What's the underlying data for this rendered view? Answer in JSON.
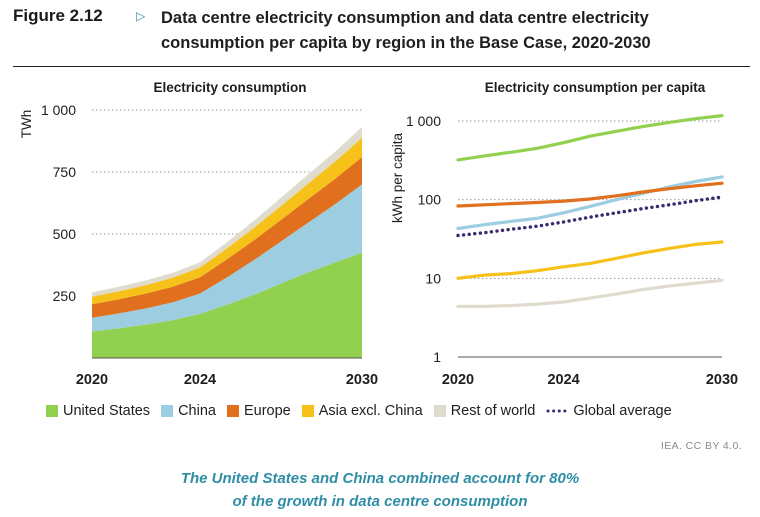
{
  "figure": {
    "label": "Figure 2.12",
    "title": "Data centre electricity consumption and data centre electricity consumption per capita by region in the Base Case, 2020-2030",
    "source": "IEA. CC BY 4.0.",
    "caption_line1": "The United States and China combined account for 80%",
    "caption_line2": "of the growth in data centre consumption"
  },
  "colors": {
    "united_states": "#92d050",
    "china": "#9ccde0",
    "europe": "#e0701d",
    "asia_excl_china": "#f6c21a",
    "rest_of_world": "#dfdccd",
    "global_average": "#3d2a6e"
  },
  "legend": [
    {
      "label": "United States",
      "color": "#92d050",
      "kind": "area"
    },
    {
      "label": "China",
      "color": "#9ccde0",
      "kind": "area"
    },
    {
      "label": "Europe",
      "color": "#e0701d",
      "kind": "area"
    },
    {
      "label": "Asia excl. China",
      "color": "#f6c21a",
      "kind": "area"
    },
    {
      "label": "Rest of world",
      "color": "#dfdccd",
      "kind": "area"
    },
    {
      "label": "Global average",
      "color": "#3d2a6e",
      "kind": "dotted-line"
    }
  ],
  "chart_data": [
    {
      "type": "area",
      "stacked": true,
      "title": "Electricity consumption",
      "ylabel": "TWh",
      "xlabel": "",
      "x": [
        2020,
        2021,
        2022,
        2023,
        2024,
        2025,
        2026,
        2027,
        2028,
        2029,
        2030
      ],
      "x_tick_labels": [
        "2020",
        "2024",
        "2030"
      ],
      "x_ticks": [
        2020,
        2024,
        2030
      ],
      "ylim": [
        0,
        1000
      ],
      "y_ticks": [
        250,
        500,
        750,
        1000
      ],
      "y_tick_labels": [
        "250",
        "500",
        "750",
        "1 000"
      ],
      "grid": "horizontal dotted",
      "series": [
        {
          "name": "United States",
          "values": [
            107,
            120,
            135,
            153,
            178,
            215,
            255,
            300,
            345,
            385,
            425
          ]
        },
        {
          "name": "China",
          "values": [
            55,
            60,
            65,
            72,
            82,
            110,
            140,
            170,
            200,
            235,
            275
          ]
        },
        {
          "name": "Europe",
          "values": [
            55,
            57,
            60,
            63,
            66,
            73,
            80,
            87,
            95,
            102,
            110
          ]
        },
        {
          "name": "Asia excl. China",
          "values": [
            30,
            32,
            34,
            36,
            39,
            44,
            50,
            56,
            63,
            70,
            78
          ]
        },
        {
          "name": "Rest of world",
          "values": [
            18,
            18,
            19,
            20,
            21,
            25,
            29,
            33,
            37,
            40,
            44
          ]
        }
      ]
    },
    {
      "type": "line",
      "title": "Electricity consumption per capita",
      "ylabel": "kWh per capita",
      "xlabel": "",
      "y_scale": "log",
      "x": [
        2020,
        2021,
        2022,
        2023,
        2024,
        2025,
        2026,
        2027,
        2028,
        2029,
        2030
      ],
      "x_tick_labels": [
        "2020",
        "2024",
        "2030"
      ],
      "x_ticks": [
        2020,
        2024,
        2030
      ],
      "ylim": [
        1,
        1000
      ],
      "y_ticks": [
        1,
        10,
        100,
        1000
      ],
      "y_tick_labels": [
        "1",
        "10",
        "100",
        "1 000"
      ],
      "grid": "horizontal dotted",
      "series": [
        {
          "name": "United States",
          "values": [
            320,
            360,
            400,
            450,
            530,
            640,
            740,
            850,
            960,
            1070,
            1170
          ]
        },
        {
          "name": "China",
          "values": [
            43,
            48,
            53,
            58,
            68,
            82,
            100,
            120,
            145,
            170,
            195
          ]
        },
        {
          "name": "Europe",
          "values": [
            83,
            86,
            89,
            92,
            96,
            102,
            112,
            125,
            138,
            150,
            162
          ]
        },
        {
          "name": "Asia excl. China",
          "values": [
            10,
            11,
            11.5,
            12.5,
            14,
            15.5,
            18,
            21,
            24,
            27,
            29
          ]
        },
        {
          "name": "Rest of world",
          "values": [
            4.4,
            4.4,
            4.5,
            4.7,
            5.0,
            5.6,
            6.3,
            7.2,
            8.0,
            8.7,
            9.4
          ]
        },
        {
          "name": "Global average",
          "values": [
            35,
            38,
            42,
            46,
            52,
            60,
            68,
            77,
            86,
            97,
            108
          ],
          "style": "dotted"
        }
      ]
    }
  ]
}
